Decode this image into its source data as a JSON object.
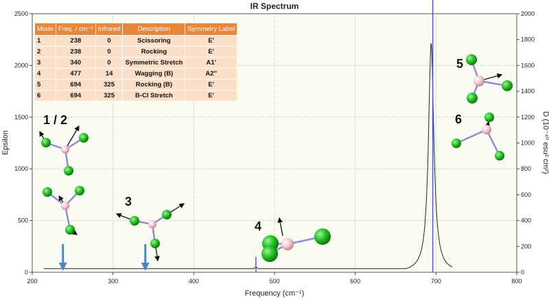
{
  "chart_data": {
    "type": "line",
    "title": "IR Spectrum",
    "xlabel": "Frequency (cm⁻¹)",
    "ylabel": "Epsilon",
    "y2label": "D (10⁻⁴⁰ esu² cm²)",
    "xlim": [
      200,
      800
    ],
    "ylim": [
      0,
      2500
    ],
    "y2lim": [
      0,
      2000
    ],
    "xticks": [
      200,
      300,
      400,
      500,
      600,
      700,
      800
    ],
    "yticks": [
      0,
      500,
      1000,
      1500,
      2000,
      2500
    ],
    "y2ticks": [
      0,
      200,
      400,
      600,
      800,
      1000,
      1200,
      1400,
      1600,
      1800,
      2000
    ],
    "grid": true,
    "spectrum_fwhm": 8,
    "spectrum_range": [
      214,
      720
    ],
    "series": [
      {
        "x": [
          238,
          238,
          340,
          477,
          694,
          694
        ],
        "values": [
          0,
          0,
          0,
          14,
          325,
          325
        ]
      }
    ],
    "sticks": [
      {
        "x": 477,
        "value": 118
      },
      {
        "x": 696,
        "value": 2330
      }
    ],
    "mode_table": {
      "headers": [
        "Mode",
        "Freq. / cm⁻¹",
        "Infrared",
        "Description",
        "Symmetry Label"
      ],
      "rows": [
        [
          "1",
          "238",
          "0",
          "Scissoring",
          "E'"
        ],
        [
          "2",
          "238",
          "0",
          "Rocking",
          "E'"
        ],
        [
          "3",
          "340",
          "0",
          "Symmetric Stretch",
          "A1'"
        ],
        [
          "4",
          "477",
          "14",
          "Wagging (B)",
          "A2''"
        ],
        [
          "5",
          "694",
          "325",
          "Rocking (B)",
          "E'"
        ],
        [
          "6",
          "694",
          "325",
          "B-Cl Stretch",
          "E'"
        ]
      ]
    },
    "annotations": [
      "1 / 2",
      "3",
      "4",
      "5",
      "6"
    ],
    "colors": {
      "spectrum": "#222222",
      "stick": "#4a5fc8",
      "arrow": "#4a86c5",
      "chlorine": "#1ec21e",
      "boron": "#f0c8cf",
      "bond": "#8c8cd8",
      "table_header": "#e8863a",
      "table_cell": "#fbdfc7"
    }
  }
}
